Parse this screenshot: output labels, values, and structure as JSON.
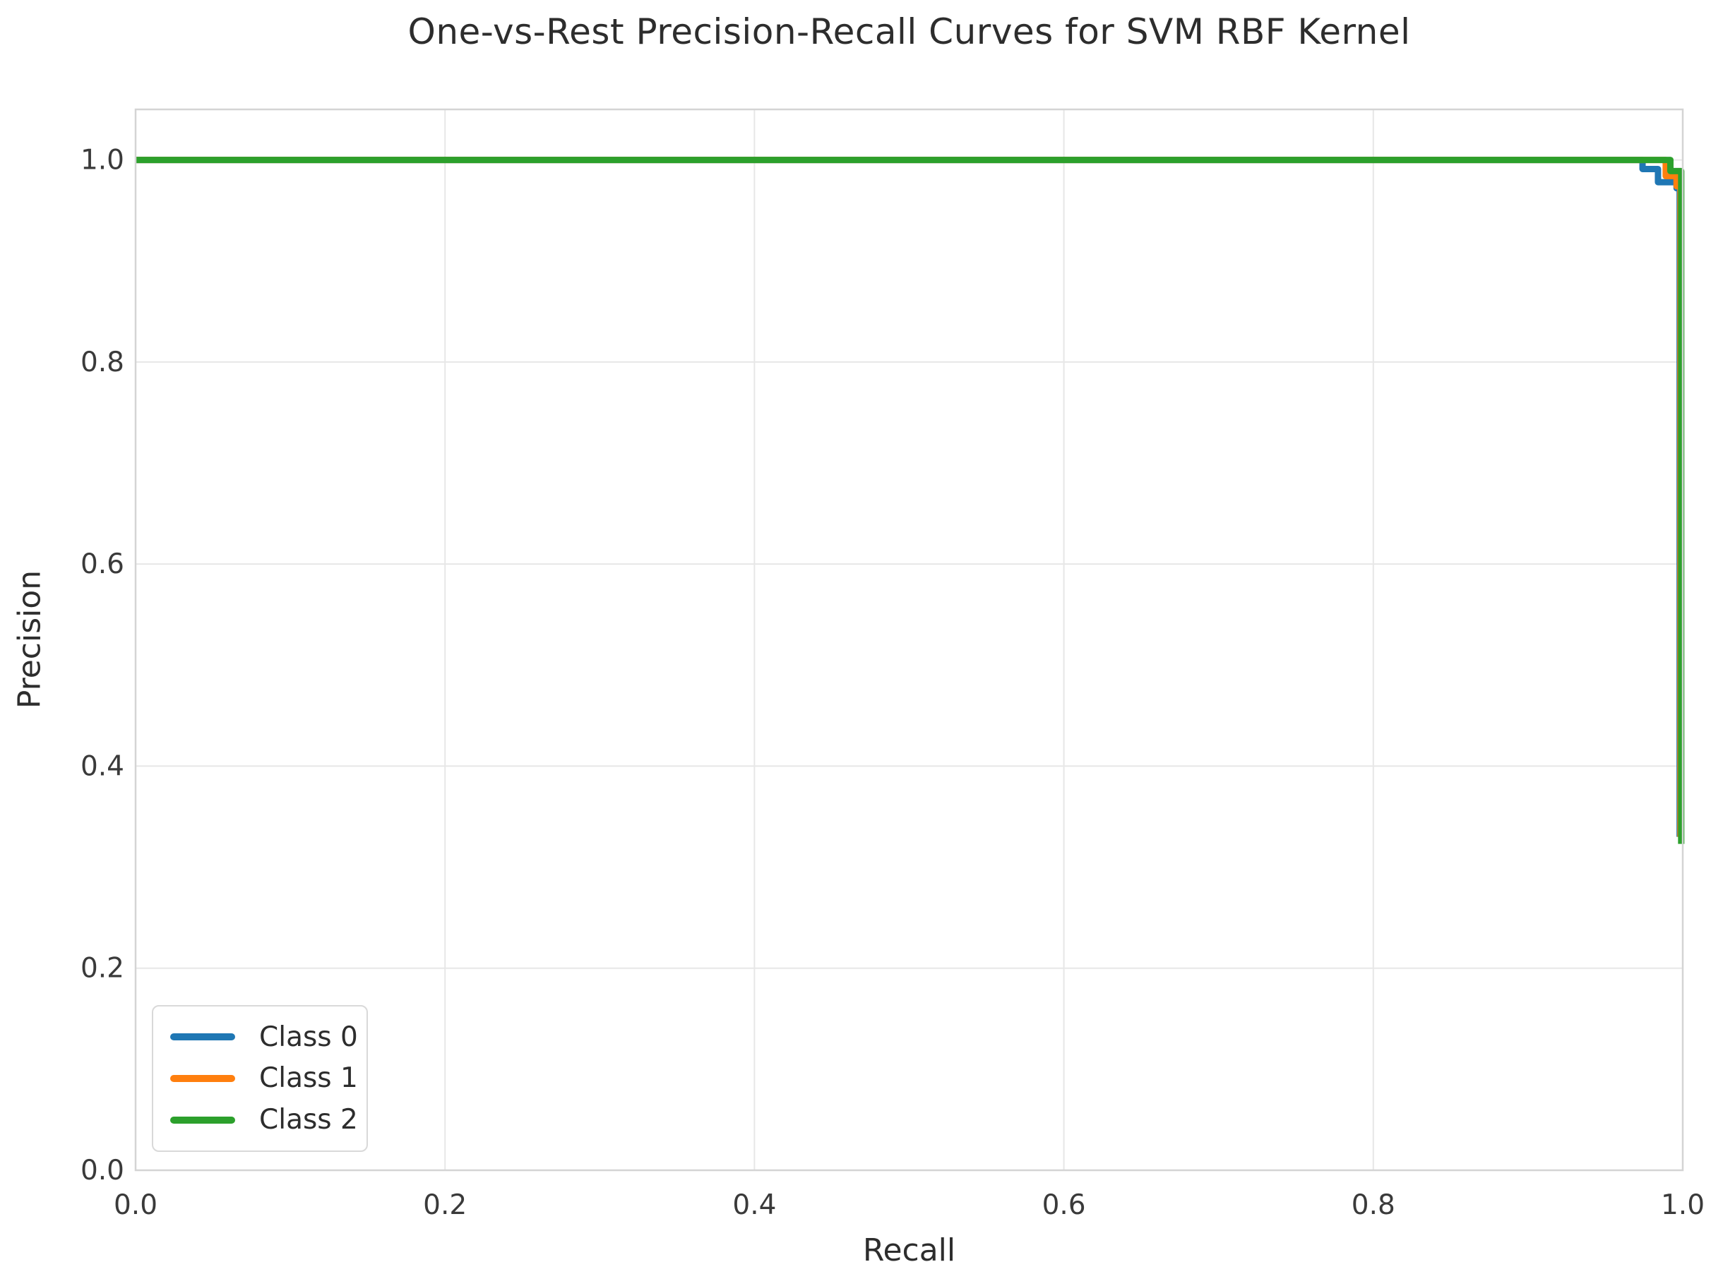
{
  "chart_data": {
    "type": "line",
    "title": "One-vs-Rest Precision-Recall Curves for SVM RBF Kernel",
    "xlabel": "Recall",
    "ylabel": "Precision",
    "xlim": [
      0.0,
      1.0
    ],
    "ylim": [
      0.0,
      1.05
    ],
    "x_ticks": [
      0.0,
      0.2,
      0.4,
      0.6,
      0.8,
      1.0
    ],
    "y_ticks": [
      0.0,
      0.2,
      0.4,
      0.6,
      0.8,
      1.0
    ],
    "x_tick_labels": [
      "0.0",
      "0.2",
      "0.4",
      "0.6",
      "0.8",
      "1.0"
    ],
    "y_tick_labels": [
      "0.0",
      "0.2",
      "0.4",
      "0.6",
      "0.8",
      "1.0"
    ],
    "grid": true,
    "grid_color": "#e7e7e7",
    "spine_color": "#d4d4d4",
    "legend_position": "lower left",
    "series": [
      {
        "name": "Class 0",
        "color": "#1f77b4",
        "points": [
          [
            0.0,
            1.0
          ],
          [
            0.974,
            1.0
          ],
          [
            0.974,
            0.991
          ],
          [
            0.984,
            0.991
          ],
          [
            0.984,
            0.978
          ],
          [
            0.996,
            0.978
          ],
          [
            0.996,
            0.972
          ],
          [
            0.998,
            0.972
          ],
          [
            0.998,
            0.33
          ]
        ]
      },
      {
        "name": "Class 1",
        "color": "#ff7f0e",
        "points": [
          [
            0.0,
            1.0
          ],
          [
            0.989,
            1.0
          ],
          [
            0.989,
            0.984
          ],
          [
            0.996,
            0.984
          ],
          [
            0.996,
            0.974
          ],
          [
            0.9985,
            0.974
          ],
          [
            0.9985,
            0.33
          ]
        ]
      },
      {
        "name": "Class 2",
        "color": "#2ca02c",
        "points": [
          [
            0.0,
            1.0
          ],
          [
            0.992,
            1.0
          ],
          [
            0.992,
            0.989
          ],
          [
            0.999,
            0.989
          ],
          [
            0.999,
            0.323
          ]
        ]
      }
    ]
  }
}
